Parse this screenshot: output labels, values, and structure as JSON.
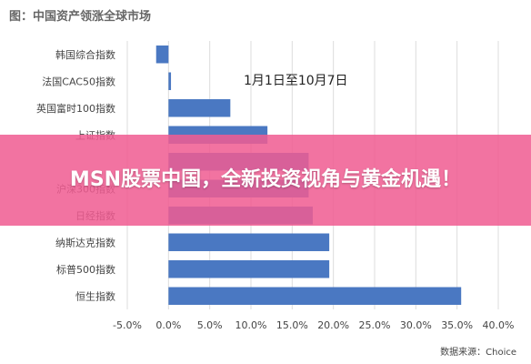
{
  "chart_data": {
    "type": "bar",
    "orientation": "horizontal",
    "title": "图：中国资产领涨全球市场",
    "annotation": "1月1日至10月7日",
    "source": "数据来源：Choice",
    "categories": [
      "韩国综合指数",
      "法国CAC50指数",
      "英国富时100指数",
      "上证指数",
      "",
      "沪深300指数",
      "日经指数",
      "纳斯达克指数",
      "标普500指数",
      "恒生指数"
    ],
    "values": [
      -1.5,
      0.3,
      7.5,
      12.0,
      17.0,
      17.0,
      17.5,
      19.5,
      19.5,
      35.5
    ],
    "xlim": [
      -5,
      40
    ],
    "ticks": [
      "-5.0%",
      "0.0%",
      "5.0%",
      "10.0%",
      "15.0%",
      "20.0%",
      "25.0%",
      "30.0%",
      "35.0%",
      "40.0%"
    ],
    "tick_values": [
      -5,
      0,
      5,
      10,
      15,
      20,
      25,
      30,
      35,
      40
    ],
    "grid": true,
    "colors": {
      "bar": "#4a78c2",
      "grid": "#dcdcdc",
      "text": "#444444"
    }
  },
  "banner": {
    "text": "MSN股票中国，全新投资视角与黄金机遇！"
  }
}
